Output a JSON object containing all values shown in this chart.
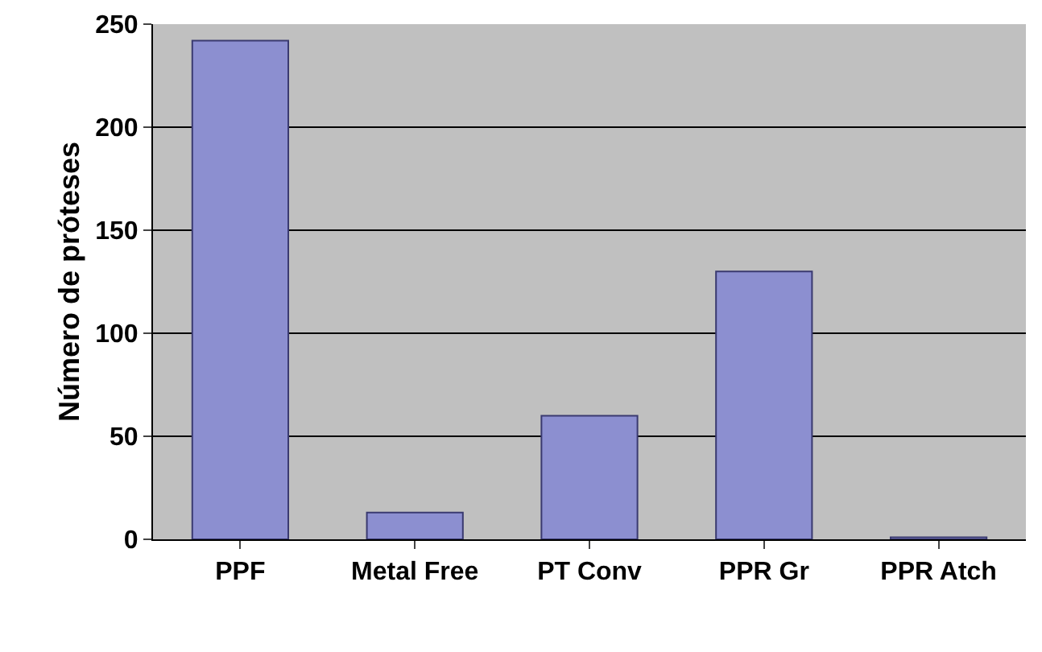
{
  "chart_data": {
    "type": "bar",
    "ylabel": "Número de próteses",
    "categories": [
      "PPF",
      "Metal Free",
      "PT Conv",
      "PPR Gr",
      "PPR Atch"
    ],
    "values": [
      242,
      13,
      60,
      130,
      1
    ],
    "color": "#8c8fd0",
    "ylim": [
      0,
      250
    ],
    "yticks": [
      0,
      50,
      100,
      150,
      200,
      250
    ],
    "grid": "y"
  }
}
